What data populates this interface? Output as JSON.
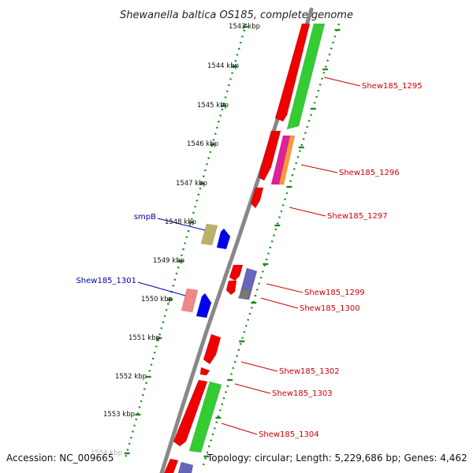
{
  "title": "Shewanella baltica OS185, complete genome",
  "accession": "Accession: NC_009665",
  "topology": "Topology: circular; Length: 5,229,686 bp; Genes: 4,462",
  "colors": {
    "tick": "#228822",
    "backbone": "#888888",
    "red": "#ee0000",
    "green": "#33cc33",
    "blue": "#0000ee",
    "olive": "#bbb066",
    "pink": "#ee8888",
    "slate": "#6666bb",
    "magenta": "#dd2299",
    "orange": "#ff9933",
    "gray": "#777777",
    "label_red": "#cc0000",
    "label_blue": "#0000aa"
  },
  "scale_labels": [
    "1543 kbp",
    "1544 kbp",
    "1545 kbp",
    "1546 kbp",
    "1547 kbp",
    "1548 kbp",
    "1549 kbp",
    "1550 kbp",
    "1551 kbp",
    "1552 kbp",
    "1553 kbp",
    "1554 kbp"
  ],
  "gene_labels": [
    {
      "text": "Shew185_1295",
      "color": "red"
    },
    {
      "text": "Shew185_1296",
      "color": "red"
    },
    {
      "text": "Shew185_1297",
      "color": "red"
    },
    {
      "text": "smpB",
      "color": "blue"
    },
    {
      "text": "Shew185_1299",
      "color": "red"
    },
    {
      "text": "Shew185_1300",
      "color": "red"
    },
    {
      "text": "Shew185_1301",
      "color": "blue"
    },
    {
      "text": "Shew185_1302",
      "color": "red"
    },
    {
      "text": "Shew185_1303",
      "color": "red"
    },
    {
      "text": "Shew185_1304",
      "color": "red"
    }
  ]
}
